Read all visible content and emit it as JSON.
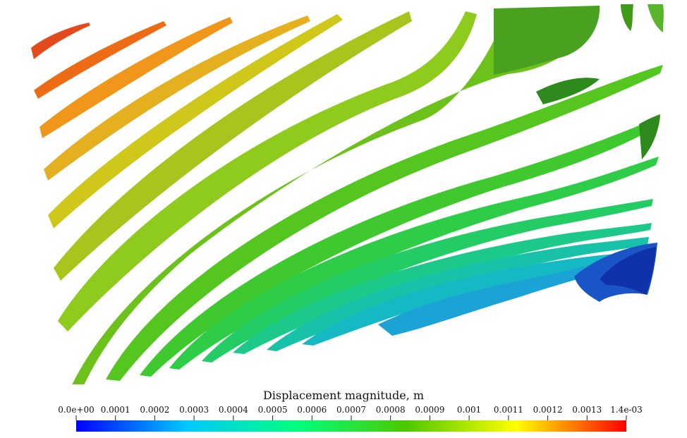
{
  "legend": {
    "title": "Displacement magnitude, m",
    "ticks": [
      "0.0e+00",
      "0.0001",
      "0.0002",
      "0.0003",
      "0.0004",
      "0.0005",
      "0.0006",
      "0.0007",
      "0.0008",
      "0.0009",
      "0.001",
      "0.0011",
      "0.0012",
      "0.0013",
      "1.4e-03"
    ],
    "min": 0,
    "max": 0.0014
  },
  "colormap": {
    "name": "rainbow",
    "stops": [
      "#0000ff",
      "#00c8ff",
      "#00ff80",
      "#4cc800",
      "#ffff00",
      "#ff0000"
    ]
  }
}
